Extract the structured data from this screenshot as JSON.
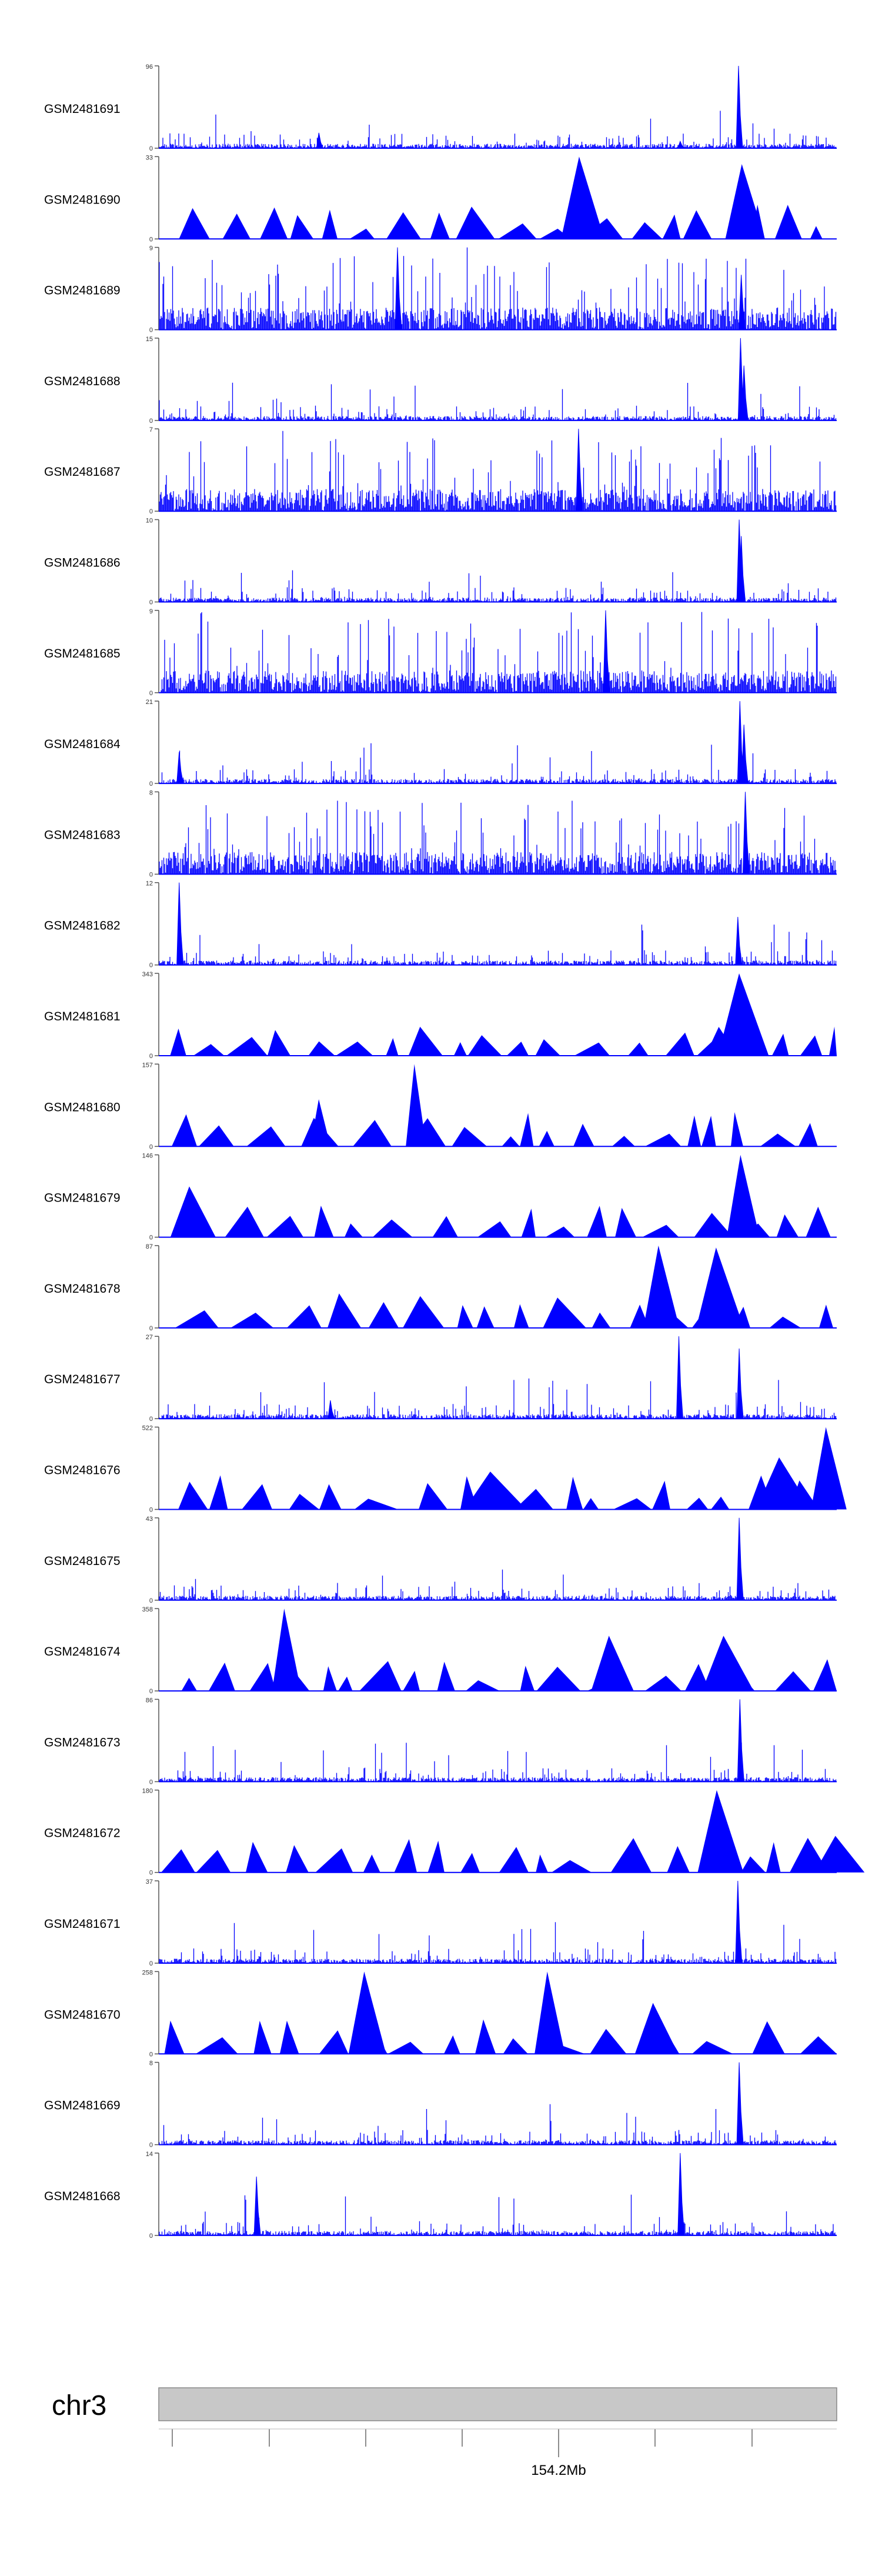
{
  "chart_data": {
    "type": "area",
    "title": "",
    "color": "#0000ff",
    "axis_color": "#555555",
    "chromosome": {
      "label": "chr3",
      "tick_label": "154.2Mb",
      "fill": "#c8c8c8",
      "stroke": "#888888"
    },
    "series": [
      {
        "name": "GSM2481691",
        "ymax": 96,
        "pattern": "sparse",
        "peaks": [
          [
            0.237,
            18
          ],
          [
            0.856,
            96
          ],
          [
            0.77,
            8
          ]
        ]
      },
      {
        "name": "GSM2481690",
        "ymax": 33,
        "pattern": "tri",
        "peaks": [
          [
            0.62,
            33
          ],
          [
            0.86,
            30
          ]
        ]
      },
      {
        "name": "GSM2481689",
        "ymax": 9,
        "pattern": "dense",
        "peaks": [
          [
            0.353,
            9
          ],
          [
            0.86,
            6
          ]
        ]
      },
      {
        "name": "GSM2481688",
        "ymax": 15,
        "pattern": "sparse",
        "peaks": [
          [
            0.859,
            15
          ],
          [
            0.864,
            10
          ]
        ]
      },
      {
        "name": "GSM2481687",
        "ymax": 7,
        "pattern": "dense",
        "peaks": [
          [
            0.62,
            7
          ]
        ]
      },
      {
        "name": "GSM2481686",
        "ymax": 10,
        "pattern": "sparse",
        "peaks": [
          [
            0.857,
            10
          ],
          [
            0.86,
            8
          ]
        ]
      },
      {
        "name": "GSM2481685",
        "ymax": 9,
        "pattern": "dense",
        "peaks": [
          [
            0.66,
            9
          ]
        ]
      },
      {
        "name": "GSM2481684",
        "ymax": 21,
        "pattern": "sparse",
        "peaks": [
          [
            0.031,
            8
          ],
          [
            0.858,
            21
          ],
          [
            0.864,
            15
          ]
        ]
      },
      {
        "name": "GSM2481683",
        "ymax": 8,
        "pattern": "dense",
        "peaks": [
          [
            0.866,
            8
          ]
        ]
      },
      {
        "name": "GSM2481682",
        "ymax": 12,
        "pattern": "sparse",
        "peaks": [
          [
            0.031,
            12
          ],
          [
            0.855,
            7
          ]
        ]
      },
      {
        "name": "GSM2481681",
        "ymax": 343,
        "pattern": "tri",
        "peaks": [
          [
            0.856,
            343
          ],
          [
            0.826,
            120
          ]
        ]
      },
      {
        "name": "GSM2481680",
        "ymax": 157,
        "pattern": "tri",
        "peaks": [
          [
            0.377,
            157
          ],
          [
            0.236,
            90
          ]
        ]
      },
      {
        "name": "GSM2481679",
        "ymax": 146,
        "pattern": "tri",
        "peaks": [
          [
            0.858,
            146
          ],
          [
            0.045,
            90
          ]
        ]
      },
      {
        "name": "GSM2481678",
        "ymax": 87,
        "pattern": "tri",
        "peaks": [
          [
            0.737,
            87
          ],
          [
            0.822,
            85
          ]
        ]
      },
      {
        "name": "GSM2481677",
        "ymax": 27,
        "pattern": "sparse",
        "peaks": [
          [
            0.768,
            27
          ],
          [
            0.857,
            23
          ],
          [
            0.254,
            6
          ]
        ]
      },
      {
        "name": "GSM2481676",
        "ymax": 522,
        "pattern": "tri",
        "peaks": [
          [
            0.984,
            522
          ],
          [
            0.915,
            330
          ],
          [
            0.489,
            240
          ]
        ]
      },
      {
        "name": "GSM2481675",
        "ymax": 43,
        "pattern": "sparse",
        "peaks": [
          [
            0.857,
            43
          ]
        ]
      },
      {
        "name": "GSM2481674",
        "ymax": 358,
        "pattern": "tri",
        "peaks": [
          [
            0.185,
            358
          ],
          [
            0.664,
            240
          ],
          [
            0.833,
            240
          ]
        ]
      },
      {
        "name": "GSM2481673",
        "ymax": 86,
        "pattern": "sparse",
        "peaks": [
          [
            0.858,
            86
          ]
        ]
      },
      {
        "name": "GSM2481672",
        "ymax": 180,
        "pattern": "tri",
        "peaks": [
          [
            0.823,
            180
          ],
          [
            0.998,
            80
          ]
        ]
      },
      {
        "name": "GSM2481671",
        "ymax": 37,
        "pattern": "sparse",
        "peaks": [
          [
            0.855,
            37
          ]
        ]
      },
      {
        "name": "GSM2481670",
        "ymax": 258,
        "pattern": "tri",
        "peaks": [
          [
            0.303,
            258
          ],
          [
            0.573,
            258
          ],
          [
            0.729,
            160
          ]
        ]
      },
      {
        "name": "GSM2481669",
        "ymax": 8,
        "pattern": "sparse",
        "peaks": [
          [
            0.857,
            8
          ]
        ]
      },
      {
        "name": "GSM2481668",
        "ymax": 14,
        "pattern": "sparse",
        "peaks": [
          [
            0.77,
            14
          ],
          [
            0.145,
            10
          ]
        ]
      }
    ]
  }
}
